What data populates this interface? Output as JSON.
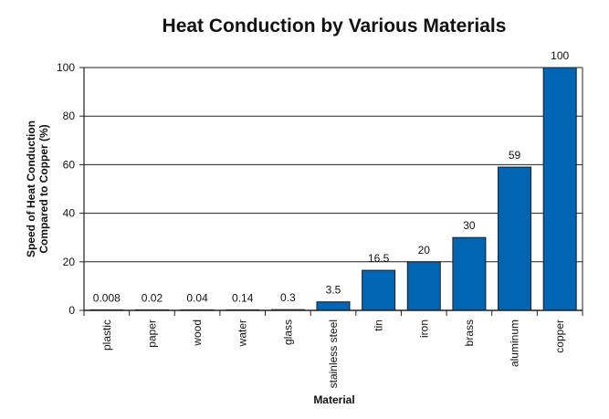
{
  "chart_data": {
    "type": "bar",
    "title": "Heat Conduction by Various Materials",
    "xlabel": "Material",
    "ylabel_lines": [
      "Speed of Heat Conduction",
      "Compared to Copper (%)"
    ],
    "ylim": [
      0,
      100
    ],
    "yticks": [
      0,
      20,
      40,
      60,
      80,
      100
    ],
    "grid": true,
    "bar_color": "#0066b3",
    "categories": [
      "plastic",
      "paper",
      "wood",
      "water",
      "glass",
      "stainless steel",
      "tin",
      "iron",
      "brass",
      "aluminum",
      "copper"
    ],
    "values": [
      0.008,
      0.02,
      0.04,
      0.14,
      0.3,
      3.5,
      16.5,
      20,
      30,
      59,
      100
    ],
    "data_labels": [
      "0.008",
      "0.02",
      "0.04",
      "0.14",
      "0.3",
      "3.5",
      "16.5",
      "20",
      "30",
      "59",
      "100"
    ]
  }
}
